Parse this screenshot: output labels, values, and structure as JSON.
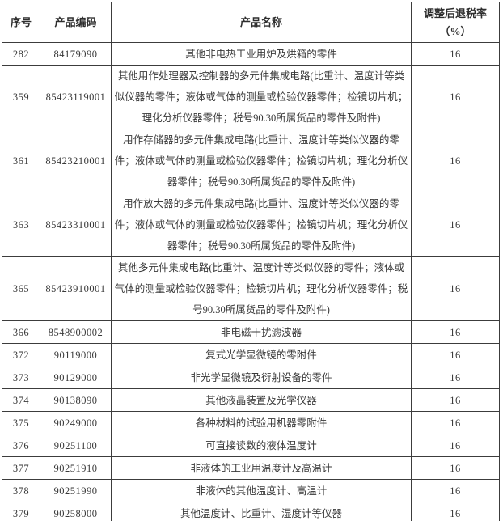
{
  "table": {
    "headers": {
      "no": "序号",
      "code": "产品编码",
      "name": "产品名称",
      "rate_line1": "调整后退税率",
      "rate_line2": "（%）"
    },
    "rows": [
      {
        "no": "282",
        "code": "84179090",
        "name": "其他非电热工业用炉及烘箱的零件",
        "rate": "16"
      },
      {
        "no": "359",
        "code": "85423119001",
        "name": "其他用作处理器及控制器的多元件集成电路(比重计、温度计等类似仪器的零件；液体或气体的测量或检验仪器零件；检镜切片机；理化分析仪器零件；税号90.30所属货品的零件及附件)",
        "rate": "16"
      },
      {
        "no": "361",
        "code": "85423210001",
        "name": "用作存储器的多元件集成电路(比重计、温度计等类似仪器的零件；液体或气体的测量或检验仪器零件；检镜切片机；理化分析仪器零件；税号90.30所属货品的零件及附件)",
        "rate": "16"
      },
      {
        "no": "363",
        "code": "85423310001",
        "name": "用作放大器的多元件集成电路(比重计、温度计等类似仪器的零件；液体或气体的测量或检验仪器零件；检镜切片机；理化分析仪器零件；税号90.30所属货品的零件及附件)",
        "rate": "16"
      },
      {
        "no": "365",
        "code": "85423910001",
        "name": "其他多元件集成电路(比重计、温度计等类似仪器的零件；液体或气体的测量或检验仪器零件；检镜切片机；理化分析仪器零件；税号90.30所属货品的零件及附件)",
        "rate": "16"
      },
      {
        "no": "366",
        "code": "8548900002",
        "name": "非电磁干扰滤波器",
        "rate": "16"
      },
      {
        "no": "372",
        "code": "90119000",
        "name": "复式光学显微镜的零附件",
        "rate": "16"
      },
      {
        "no": "373",
        "code": "90129000",
        "name": "非光学显微镜及衍射设备的零件",
        "rate": "16"
      },
      {
        "no": "374",
        "code": "90138090",
        "name": "其他液晶装置及光学仪器",
        "rate": "16"
      },
      {
        "no": "375",
        "code": "90249000",
        "name": "各种材料的试验用机器零附件",
        "rate": "16"
      },
      {
        "no": "376",
        "code": "90251100",
        "name": "可直接读数的液体温度计",
        "rate": "16"
      },
      {
        "no": "377",
        "code": "90251910",
        "name": "非液体的工业用温度计及高温计",
        "rate": "16"
      },
      {
        "no": "378",
        "code": "90251990",
        "name": "非液体的其他温度计、高温计",
        "rate": "16"
      },
      {
        "no": "379",
        "code": "90258000",
        "name": "其他温度计、比重计、湿度计等仪器",
        "rate": "16"
      }
    ],
    "colors": {
      "border": "#3c3c3c",
      "header_text": "#2e2e2e",
      "body_text": "#393939",
      "number_text": "#4e5661",
      "background": "#ffffff"
    }
  }
}
